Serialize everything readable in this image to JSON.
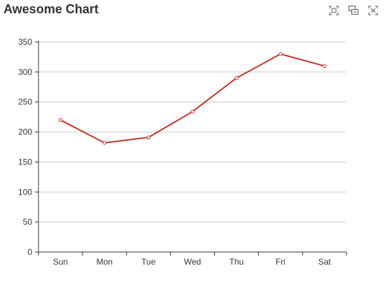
{
  "chart_data": {
    "type": "line",
    "title": "Awesome Chart",
    "categories": [
      "Sun",
      "Mon",
      "Tue",
      "Wed",
      "Thu",
      "Fri",
      "Sat"
    ],
    "series": [
      {
        "values": [
          220,
          182,
          191,
          234,
          290,
          330,
          310
        ],
        "color": "#c23531"
      }
    ],
    "ylim": [
      0,
      350
    ],
    "yticks": [
      0,
      50,
      100,
      150,
      200,
      250,
      300,
      350
    ],
    "grid": true,
    "xlabel": "",
    "ylabel": ""
  },
  "toolbox": {
    "icons": [
      "data-zoom-icon",
      "zoom-reset-icon",
      "restore-icon"
    ]
  },
  "colors": {
    "series": "#c23531",
    "axis": "#333333",
    "grid": "#cccccc",
    "title": "#333333",
    "icon": "#666666"
  }
}
